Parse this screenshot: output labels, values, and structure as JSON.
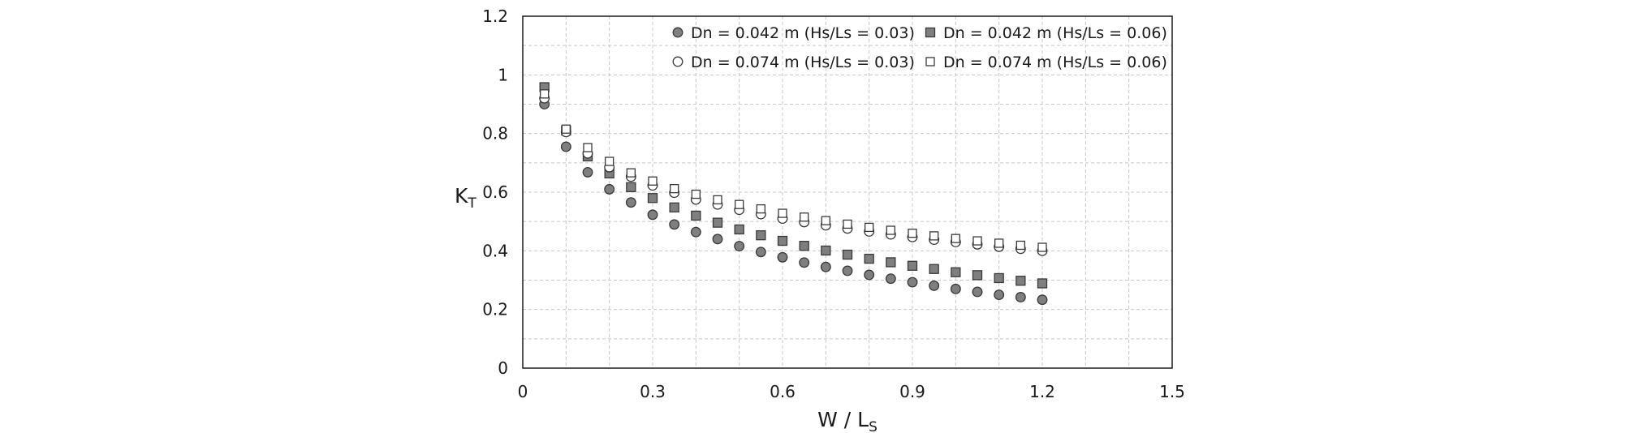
{
  "chart_data": {
    "type": "scatter",
    "xlabel": "W / L",
    "xlabel_sub": "S",
    "ylabel": "K",
    "ylabel_sub": "T",
    "xlim": [
      0,
      1.5
    ],
    "ylim": [
      0,
      1.2
    ],
    "x_ticks": [
      "0",
      "0.3",
      "0.6",
      "0.9",
      "1.2",
      "1.5"
    ],
    "y_ticks": [
      "0",
      "0.2",
      "0.4",
      "0.6",
      "0.8",
      "1",
      "1.2"
    ],
    "grid": true,
    "legend_position": "top",
    "x": [
      0.05,
      0.1,
      0.15,
      0.2,
      0.25,
      0.3,
      0.35,
      0.4,
      0.45,
      0.5,
      0.55,
      0.6,
      0.65,
      0.7,
      0.75,
      0.8,
      0.85,
      0.9,
      0.95,
      1.0,
      1.05,
      1.1,
      1.15,
      1.2
    ],
    "series": [
      {
        "name": "Dn = 0.042 m (Hs/Ls = 0.03)",
        "marker": "circle-filled",
        "values": [
          0.9,
          0.755,
          0.668,
          0.61,
          0.565,
          0.523,
          0.49,
          0.464,
          0.44,
          0.416,
          0.396,
          0.378,
          0.36,
          0.345,
          0.332,
          0.318,
          0.305,
          0.293,
          0.281,
          0.27,
          0.26,
          0.25,
          0.242,
          0.233
        ]
      },
      {
        "name": "Dn = 0.042 m (Hs/Ls = 0.06)",
        "marker": "square-filled",
        "values": [
          0.958,
          0.81,
          0.722,
          0.664,
          0.617,
          0.58,
          0.548,
          0.52,
          0.496,
          0.473,
          0.453,
          0.434,
          0.417,
          0.401,
          0.387,
          0.373,
          0.361,
          0.349,
          0.338,
          0.327,
          0.317,
          0.307,
          0.298,
          0.289
        ]
      },
      {
        "name": "Dn = 0.074 m (Hs/Ls = 0.03)",
        "marker": "circle-open",
        "values": [
          0.92,
          0.805,
          0.732,
          0.685,
          0.653,
          0.623,
          0.598,
          0.575,
          0.558,
          0.54,
          0.525,
          0.51,
          0.498,
          0.487,
          0.476,
          0.466,
          0.456,
          0.447,
          0.438,
          0.43,
          0.422,
          0.414,
          0.407,
          0.4
        ]
      },
      {
        "name": "Dn = 0.074 m (Hs/Ls = 0.06)",
        "marker": "square-open",
        "values": [
          0.935,
          0.815,
          0.752,
          0.705,
          0.666,
          0.638,
          0.612,
          0.593,
          0.574,
          0.558,
          0.543,
          0.528,
          0.515,
          0.503,
          0.491,
          0.48,
          0.47,
          0.46,
          0.451,
          0.442,
          0.434,
          0.426,
          0.419,
          0.412
        ]
      }
    ],
    "colors": {
      "filled": "#7f7f7f",
      "stroke": "#3a3a3a",
      "open": "#ffffff",
      "grid": "#c8c8c8",
      "frame": "#1a1a1a"
    }
  }
}
